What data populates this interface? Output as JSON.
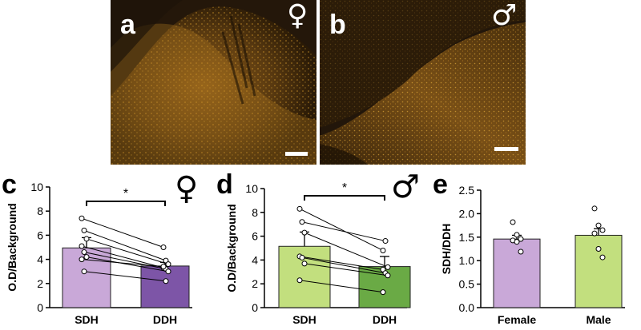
{
  "panels": {
    "a": {
      "letter": "a",
      "symbol": "♀"
    },
    "b": {
      "letter": "b",
      "symbol": "♂"
    },
    "c": {
      "letter": "c",
      "symbol": "♀"
    },
    "d": {
      "letter": "d",
      "symbol": "♂"
    },
    "e": {
      "letter": "e"
    }
  },
  "colors": {
    "female_bar": "#c9a8d8",
    "female_bar_dark": "#7d55a7",
    "male_bar": "#c2df7e",
    "male_bar_dark": "#6aaa45",
    "microscopy_bg": "#201404",
    "microscopy_signal": "#e0a02a"
  },
  "chart_data": [
    {
      "panel": "c",
      "type": "bar",
      "categories": [
        "SDH",
        "DDH"
      ],
      "values": [
        4.95,
        3.45
      ],
      "errors": [
        0.85,
        0.3
      ],
      "ylabel": "O.D/Background",
      "ylim": [
        0,
        10
      ],
      "yticks": [
        "0",
        "2",
        "4",
        "6",
        "8",
        "10"
      ],
      "significance": "*",
      "paired_points": [
        [
          7.4,
          5.0
        ],
        [
          6.4,
          3.9
        ],
        [
          5.7,
          3.6
        ],
        [
          5.1,
          3.3
        ],
        [
          4.6,
          3.2
        ],
        [
          4.2,
          3.0
        ],
        [
          4.0,
          3.4
        ],
        [
          3.0,
          2.2
        ]
      ]
    },
    {
      "panel": "d",
      "type": "bar",
      "categories": [
        "SDH",
        "DDH"
      ],
      "values": [
        5.15,
        3.45
      ],
      "errors": [
        1.2,
        0.85
      ],
      "ylabel": "O.D/Background",
      "ylim": [
        0,
        10
      ],
      "yticks": [
        "0",
        "2",
        "4",
        "6",
        "8",
        "10"
      ],
      "significance": "*",
      "paired_points": [
        [
          8.3,
          4.8
        ],
        [
          7.2,
          5.6
        ],
        [
          6.3,
          3.4
        ],
        [
          4.3,
          3.2
        ],
        [
          4.2,
          2.9
        ],
        [
          3.7,
          2.7
        ],
        [
          2.3,
          1.3
        ]
      ]
    },
    {
      "panel": "e",
      "type": "bar",
      "categories": [
        "Female",
        "Male"
      ],
      "values": [
        1.46,
        1.54
      ],
      "errors": [
        0.08,
        0.14
      ],
      "ylabel": "SDH/DDH",
      "ylim": [
        0,
        2.5
      ],
      "yticks": [
        "0.0",
        "0.5",
        "1.0",
        "1.5",
        "2.0",
        "2.5"
      ],
      "points": [
        [
          1.82,
          1.55,
          1.46,
          1.43,
          1.4,
          1.19
        ],
        [
          2.11,
          1.75,
          1.65,
          1.58,
          1.25,
          1.07
        ]
      ]
    }
  ]
}
